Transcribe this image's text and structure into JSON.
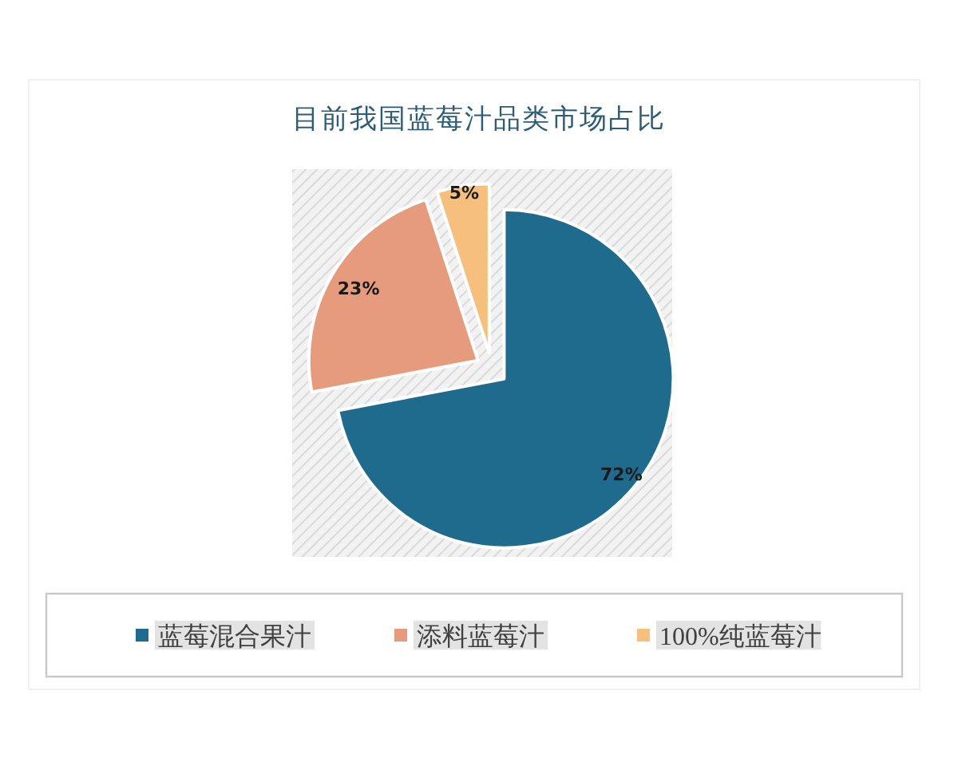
{
  "chart_data": {
    "type": "pie",
    "title": "目前我国蓝莓汁品类市场占比",
    "categories": [
      "蓝莓混合果汁",
      "添料蓝莓汁",
      "100%纯蓝莓汁"
    ],
    "values": [
      72,
      23,
      5
    ],
    "colors": [
      "#1f6b8e",
      "#e59b7c",
      "#f6c07c"
    ],
    "value_labels": [
      "72%",
      "23%",
      "5%"
    ],
    "legend": "bottom"
  }
}
